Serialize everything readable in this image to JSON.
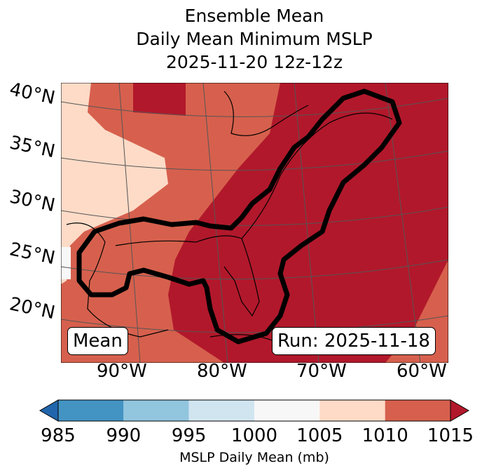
{
  "title": {
    "line1": "Ensemble Mean",
    "line2": "Daily Mean Minimum MSLP",
    "line3": "2025-11-20 12z-12z"
  },
  "lat_labels": [
    "40°N",
    "35°N",
    "30°N",
    "25°N",
    "20°N"
  ],
  "lon_labels": [
    "90°W",
    "80°W",
    "70°W",
    "60°W"
  ],
  "annotations": {
    "left": "Mean",
    "right": "Run: 2025-11-18"
  },
  "colorbar": {
    "label": "MSLP Daily Mean (mb)",
    "ticks": [
      "985",
      "990",
      "995",
      "1000",
      "1005",
      "1010",
      "1015"
    ],
    "under_color": "#2166ac",
    "over_color": "#b2182b",
    "colors": [
      "#4393c3",
      "#92c5de",
      "#d1e5f0",
      "#f7f7f7",
      "#fddbc7",
      "#d6604d"
    ]
  },
  "chart_data": {
    "type": "heatmap",
    "title": "Ensemble Mean Daily Mean Minimum MSLP 2025-11-20 12z-12z",
    "levels": [
      985,
      990,
      995,
      1000,
      1005,
      1010,
      1015
    ],
    "units": "mb",
    "extend": "both",
    "contour": "black contour outline along US East Coast / Gulf region"
  }
}
